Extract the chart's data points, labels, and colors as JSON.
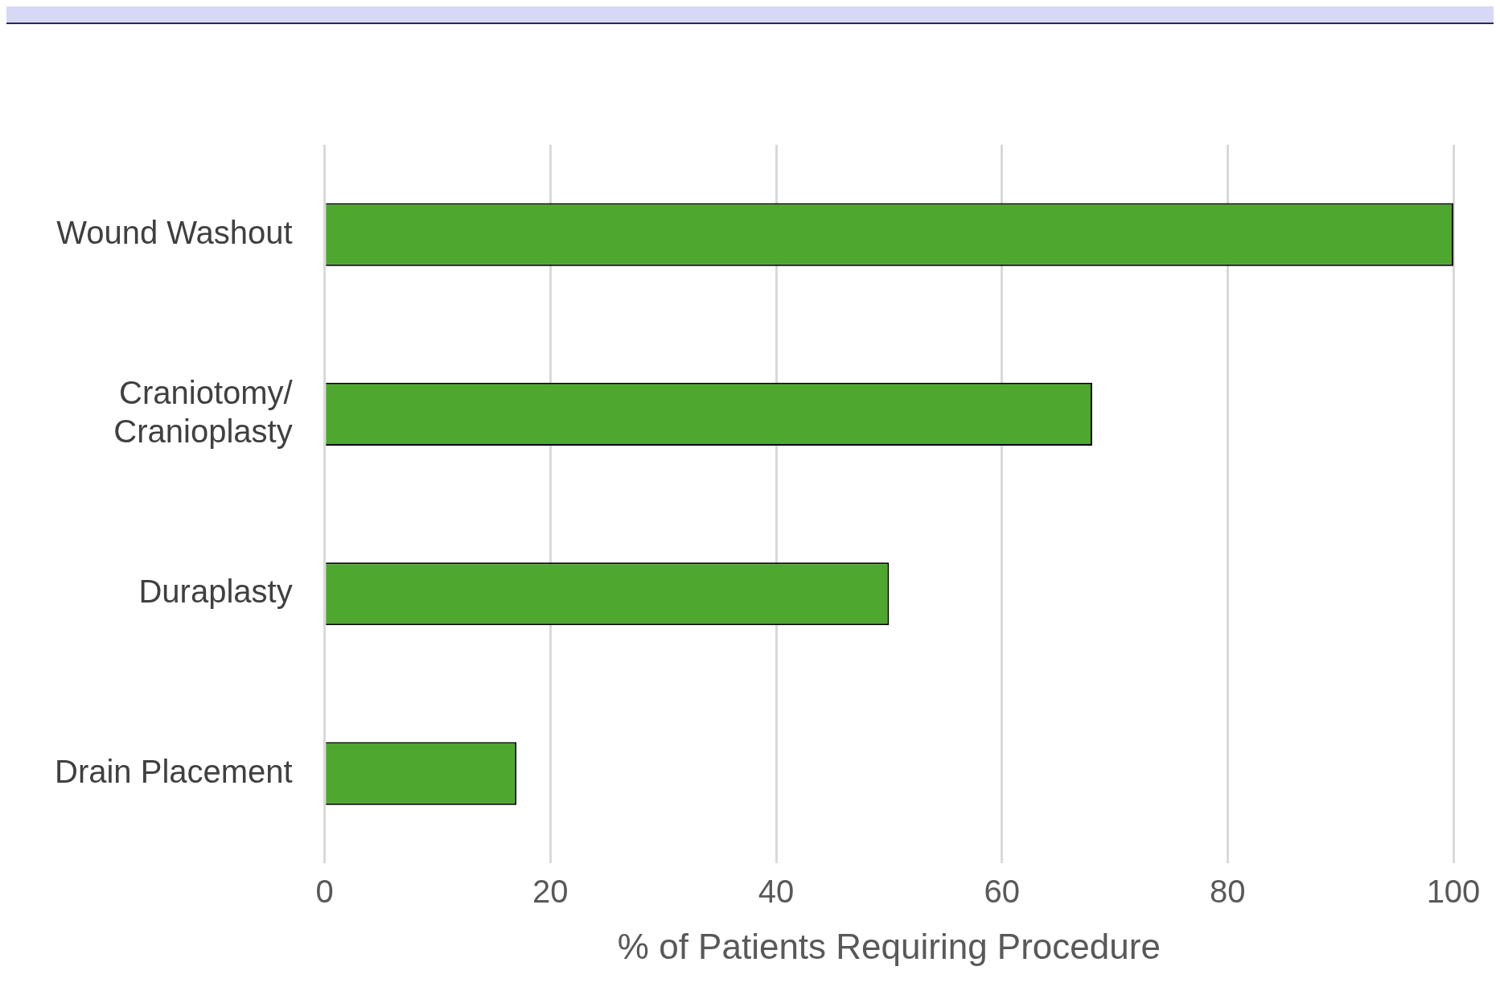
{
  "chart_data": {
    "type": "bar",
    "orientation": "horizontal",
    "xlabel": "% of Patients Requiring Procedure",
    "categories": [
      "Wound Washout",
      "Craniotomy/ Cranioplasty",
      "Duraplasty",
      "Drain Placement"
    ],
    "values": [
      100,
      68,
      50,
      17
    ],
    "color": "#4ea72e",
    "xlim": [
      0,
      100
    ],
    "xticks": [
      0,
      20,
      40,
      60,
      80,
      100
    ],
    "grid": "x",
    "legend": false
  }
}
